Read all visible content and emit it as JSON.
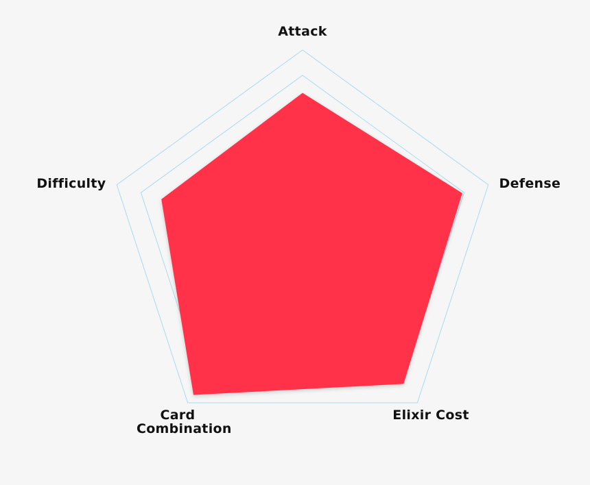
{
  "chart_data": {
    "type": "radar",
    "categories": [
      "Attack",
      "Defense",
      "Elixir Cost",
      "Card Combination",
      "Difficulty"
    ],
    "series": [
      {
        "color": "#ff3349",
        "values": [
          78,
          86,
          88,
          95,
          76
        ]
      }
    ],
    "rlim": [
      0,
      100
    ],
    "rticks": [
      87,
      100
    ],
    "grid": true,
    "grid_color": "#a9d9f2"
  }
}
